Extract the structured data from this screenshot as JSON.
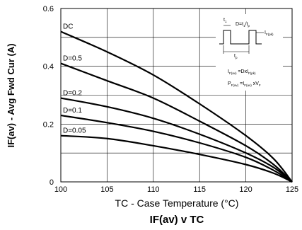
{
  "chart_data": {
    "type": "line",
    "title": "IF(av) v TC",
    "xlabel": "TC - Case Temperature (°C)",
    "ylabel": "IF(av) - Avg Fwd Cur (A)",
    "xlim": [
      100,
      125
    ],
    "ylim": [
      0,
      0.6
    ],
    "xticks": [
      100,
      105,
      110,
      115,
      120,
      125
    ],
    "yticks": [
      0,
      0.2,
      0.4,
      0.6
    ],
    "x_tick_labels": [
      "100",
      "105",
      "110",
      "115",
      "120",
      "125"
    ],
    "y_tick_labels": [
      "0",
      "0.2",
      "0.4",
      "0.6"
    ],
    "grid": true,
    "series": [
      {
        "name": "DC",
        "x": [
          100,
          105,
          110,
          115,
          120,
          123,
          125
        ],
        "y": [
          0.52,
          0.45,
          0.37,
          0.27,
          0.16,
          0.08,
          0
        ]
      },
      {
        "name": "D=0.5",
        "x": [
          100,
          105,
          110,
          115,
          120,
          123,
          125
        ],
        "y": [
          0.41,
          0.35,
          0.29,
          0.21,
          0.125,
          0.06,
          0
        ]
      },
      {
        "name": "D=0.2",
        "x": [
          100,
          105,
          110,
          115,
          120,
          123,
          125
        ],
        "y": [
          0.29,
          0.26,
          0.22,
          0.165,
          0.1,
          0.05,
          0
        ]
      },
      {
        "name": "D=0.1",
        "x": [
          100,
          105,
          110,
          115,
          120,
          123,
          125
        ],
        "y": [
          0.23,
          0.205,
          0.175,
          0.135,
          0.085,
          0.04,
          0
        ]
      },
      {
        "name": "D=0.05",
        "x": [
          100,
          105,
          110,
          115,
          120,
          123,
          125
        ],
        "y": [
          0.16,
          0.15,
          0.125,
          0.095,
          0.06,
          0.03,
          0
        ]
      }
    ]
  },
  "inset": {
    "t1": "t",
    "t1_sub": "1",
    "dt_formula": "D=t",
    "dt_sub1": "1",
    "dt_mid": "/t",
    "dt_sub2": "p",
    "ifpk": "I",
    "ifpk_sub": "F(pk)",
    "tp": "t",
    "tp_sub": "p",
    "eq1_a": "I",
    "eq1_sub_a": "F(av)",
    "eq1_b": "=DxI",
    "eq1_sub_b": "F(pk)",
    "eq2_a": "P",
    "eq2_sub_a": "F(av)",
    "eq2_b": "=I",
    "eq2_sub_b": "F(av)",
    "eq2_c": "xV",
    "eq2_sub_c": "F"
  }
}
